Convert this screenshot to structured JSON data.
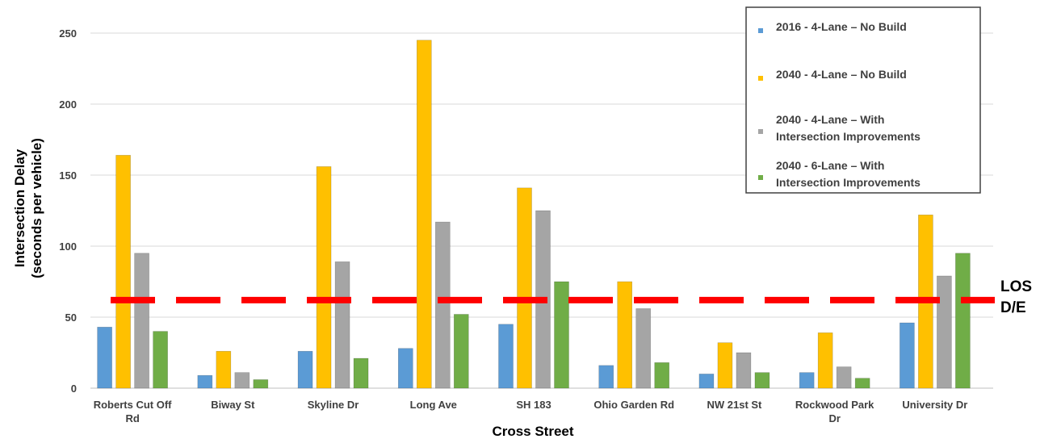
{
  "chart_data": {
    "type": "bar",
    "xlabel": "Cross Street",
    "ylabel": [
      "Intersection Delay",
      "(seconds per vehicle)"
    ],
    "ylim": [
      0,
      250
    ],
    "yticks": [
      0,
      50,
      100,
      150,
      200,
      250
    ],
    "grid": true,
    "legend_position": "top-right",
    "categories": [
      [
        "Roberts Cut Off",
        "Rd"
      ],
      [
        "Biway St"
      ],
      [
        "Skyline Dr"
      ],
      [
        "Long Ave"
      ],
      [
        "SH 183"
      ],
      [
        "Ohio Garden Rd"
      ],
      [
        "NW 21st St"
      ],
      [
        "Rockwood Park",
        "Dr"
      ],
      [
        "University Dr"
      ]
    ],
    "series": [
      {
        "name": [
          "2016 - 4-Lane – No Build"
        ],
        "color": "#5b9bd5",
        "values": [
          43,
          9,
          26,
          28,
          45,
          16,
          10,
          11,
          46
        ]
      },
      {
        "name": [
          "2040 - 4-Lane – No Build"
        ],
        "color": "#ffc000",
        "values": [
          164,
          26,
          156,
          245,
          141,
          75,
          32,
          39,
          122
        ]
      },
      {
        "name": [
          "2040 - 4-Lane – With",
          "Intersection Improvements"
        ],
        "color": "#a5a5a5",
        "values": [
          95,
          11,
          89,
          117,
          125,
          56,
          25,
          15,
          79
        ]
      },
      {
        "name": [
          "2040 - 6-Lane – With",
          "Intersection Improvements"
        ],
        "color": "#70ad47",
        "values": [
          40,
          6,
          21,
          52,
          75,
          18,
          11,
          7,
          95
        ]
      }
    ],
    "reference_line": {
      "value": 62,
      "label": [
        "LOS",
        "D/E"
      ],
      "color": "#ff0000"
    }
  }
}
